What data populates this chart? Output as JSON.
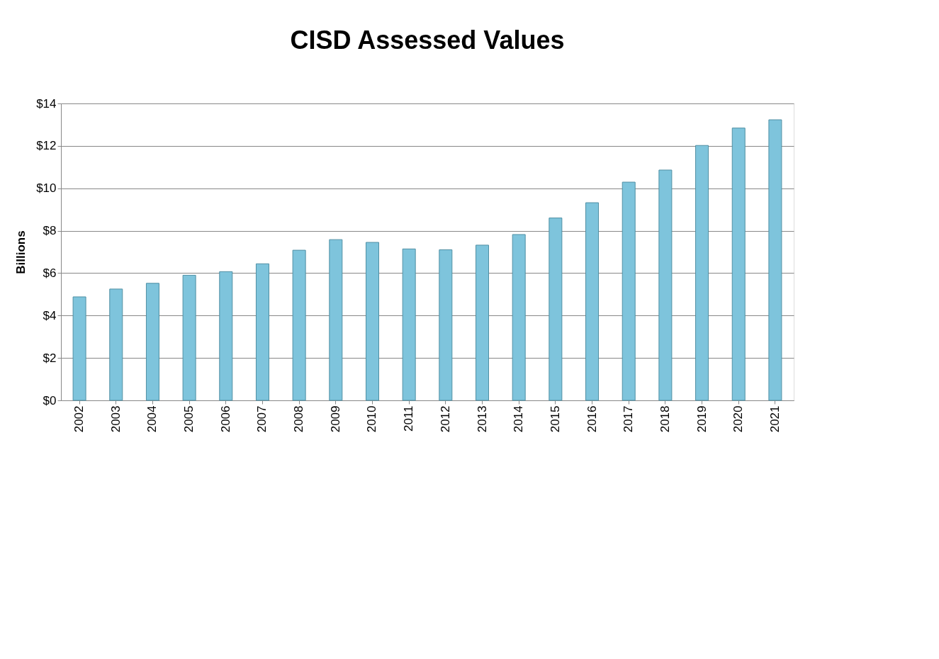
{
  "chart_data": {
    "type": "bar",
    "title": "CISD Assessed Values",
    "ylabel": "Billions",
    "categories": [
      "2002",
      "2003",
      "2004",
      "2005",
      "2006",
      "2007",
      "2008",
      "2009",
      "2010",
      "2011",
      "2012",
      "2013",
      "2014",
      "2015",
      "2016",
      "2017",
      "2018",
      "2019",
      "2020",
      "2021"
    ],
    "values": [
      4.88,
      5.25,
      5.52,
      5.9,
      6.07,
      6.44,
      7.08,
      7.58,
      7.45,
      7.14,
      7.1,
      7.32,
      7.82,
      8.6,
      9.32,
      10.29,
      10.86,
      12.02,
      12.84,
      13.23
    ],
    "color": "#7ec4dc",
    "ylim": [
      0,
      14
    ],
    "yticks": [
      {
        "value": 0,
        "label": "$0"
      },
      {
        "value": 2,
        "label": "$2"
      },
      {
        "value": 4,
        "label": "$4"
      },
      {
        "value": 6,
        "label": "$6"
      },
      {
        "value": 8,
        "label": "$8"
      },
      {
        "value": 10,
        "label": "$10"
      },
      {
        "value": 12,
        "label": "$12"
      },
      {
        "value": 14,
        "label": "$14"
      }
    ],
    "grid": "y"
  }
}
